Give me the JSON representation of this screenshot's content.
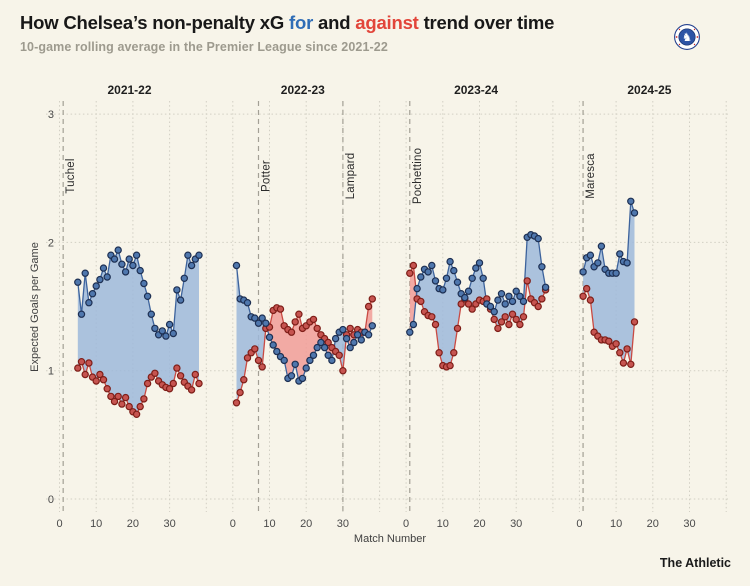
{
  "header": {
    "title_prefix": "How Chelsea’s non-penalty xG ",
    "title_for": "for",
    "title_mid": " and ",
    "title_against": "against",
    "title_suffix": " trend over time",
    "subtitle": "10-game rolling average in the Premier League since 2021-22",
    "badge": "chelsea-crest"
  },
  "footer": {
    "brand": "The Athletic"
  },
  "chart_data": {
    "type": "area",
    "title": "How Chelsea’s non-penalty xG for and against trend over time",
    "subtitle": "10-game rolling average in the Premier League since 2021-22",
    "xlabel": "Match Number",
    "ylabel": "Expected Goals per Game",
    "yticks": [
      0,
      1,
      2,
      3
    ],
    "xticks": [
      0,
      10,
      20,
      30
    ],
    "ylim": [
      0,
      3.1
    ],
    "xlim_per_panel": [
      0,
      40
    ],
    "grid": "dotted",
    "legend": "inline-in-title",
    "series_meta": [
      {
        "name": "xG for",
        "color": "#3d639c"
      },
      {
        "name": "xG against",
        "color": "#c94a43"
      }
    ],
    "colors": {
      "for_line": "#3d639c",
      "for_marker": "#4f77ad",
      "for_marker_stroke": "#1d2f52",
      "for_fill": "#9db8da",
      "against_line": "#c94a43",
      "against_marker": "#c65450",
      "against_marker_stroke": "#7e1e18",
      "against_fill": "#f19c98",
      "grid": "#d2cfc4",
      "manager_line": "#a3a095",
      "title_for": "#2f6db6",
      "title_against": "#e2453a"
    },
    "panels": [
      {
        "season": "2021-22",
        "start_match": 5,
        "managers": [
          {
            "name": "Tuchel",
            "match": 1
          }
        ],
        "for_values": [
          1.69,
          1.44,
          1.76,
          1.53,
          1.6,
          1.66,
          1.71,
          1.8,
          1.73,
          1.9,
          1.87,
          1.94,
          1.83,
          1.77,
          1.87,
          1.82,
          1.9,
          1.78,
          1.68,
          1.58,
          1.44,
          1.33,
          1.28,
          1.31,
          1.27,
          1.36,
          1.29,
          1.63,
          1.55,
          1.72,
          1.9,
          1.82,
          1.87,
          1.9
        ],
        "against_values": [
          1.02,
          1.07,
          0.97,
          1.06,
          0.95,
          0.92,
          0.97,
          0.93,
          0.86,
          0.8,
          0.76,
          0.8,
          0.74,
          0.79,
          0.72,
          0.68,
          0.66,
          0.72,
          0.78,
          0.9,
          0.95,
          0.98,
          0.92,
          0.89,
          0.87,
          0.86,
          0.9,
          1.02,
          0.96,
          0.91,
          0.88,
          0.85,
          0.97,
          0.9
        ]
      },
      {
        "season": "2022-23",
        "start_match": 1,
        "managers": [
          {
            "name": "Potter",
            "match": 7
          },
          {
            "name": "Lampard",
            "match": 30
          }
        ],
        "for_values": [
          1.82,
          1.56,
          1.55,
          1.53,
          1.42,
          1.41,
          1.37,
          1.41,
          1.37,
          1.26,
          1.2,
          1.15,
          1.11,
          1.08,
          0.94,
          0.96,
          1.05,
          0.92,
          0.94,
          1.02,
          1.08,
          1.12,
          1.18,
          1.22,
          1.18,
          1.12,
          1.08,
          1.25,
          1.3,
          1.32,
          1.25,
          1.18,
          1.22,
          1.28,
          1.24,
          1.3,
          1.28,
          1.35
        ],
        "against_values": [
          0.75,
          0.83,
          0.93,
          1.1,
          1.14,
          1.17,
          1.08,
          1.03,
          1.33,
          1.34,
          1.47,
          1.49,
          1.48,
          1.35,
          1.32,
          1.3,
          1.38,
          1.44,
          1.33,
          1.35,
          1.38,
          1.4,
          1.33,
          1.28,
          1.25,
          1.22,
          1.18,
          1.15,
          1.12,
          1.0,
          1.28,
          1.33,
          1.28,
          1.32,
          1.3,
          1.3,
          1.5,
          1.56
        ]
      },
      {
        "season": "2023-24",
        "start_match": 1,
        "managers": [
          {
            "name": "Pochettino",
            "match": 1
          }
        ],
        "for_values": [
          1.3,
          1.36,
          1.64,
          1.73,
          1.79,
          1.77,
          1.82,
          1.7,
          1.64,
          1.63,
          1.72,
          1.85,
          1.78,
          1.69,
          1.6,
          1.57,
          1.62,
          1.72,
          1.8,
          1.84,
          1.72,
          1.52,
          1.5,
          1.46,
          1.55,
          1.6,
          1.52,
          1.58,
          1.54,
          1.62,
          1.58,
          1.54,
          2.04,
          2.06,
          2.05,
          2.03,
          1.81,
          1.65
        ],
        "against_values": [
          1.76,
          1.82,
          1.56,
          1.54,
          1.46,
          1.43,
          1.42,
          1.36,
          1.14,
          1.04,
          1.03,
          1.04,
          1.14,
          1.33,
          1.52,
          1.56,
          1.52,
          1.48,
          1.52,
          1.55,
          1.54,
          1.56,
          1.48,
          1.4,
          1.33,
          1.38,
          1.42,
          1.36,
          1.44,
          1.4,
          1.36,
          1.42,
          1.7,
          1.56,
          1.53,
          1.5,
          1.56,
          1.63
        ]
      },
      {
        "season": "2024-25",
        "start_match": 1,
        "managers": [
          {
            "name": "Maresca",
            "match": 1
          }
        ],
        "for_values": [
          1.77,
          1.88,
          1.9,
          1.81,
          1.84,
          1.97,
          1.79,
          1.76,
          1.76,
          1.76,
          1.91,
          1.85,
          1.84,
          2.32,
          2.23
        ],
        "against_values": [
          1.58,
          1.64,
          1.55,
          1.3,
          1.27,
          1.24,
          1.24,
          1.23,
          1.19,
          1.21,
          1.14,
          1.06,
          1.17,
          1.05,
          1.38
        ]
      }
    ]
  }
}
